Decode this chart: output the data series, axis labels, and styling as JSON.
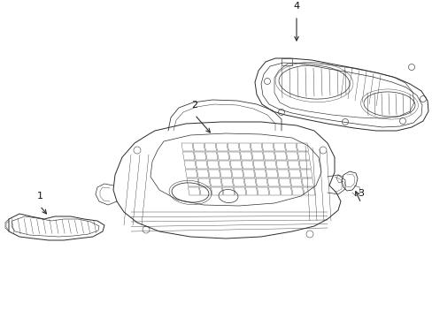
{
  "background_color": "#ffffff",
  "line_color": "#2a2a2a",
  "line_width": 0.7,
  "label_color": "#111111",
  "figsize": [
    4.89,
    3.6
  ],
  "dpi": 100
}
